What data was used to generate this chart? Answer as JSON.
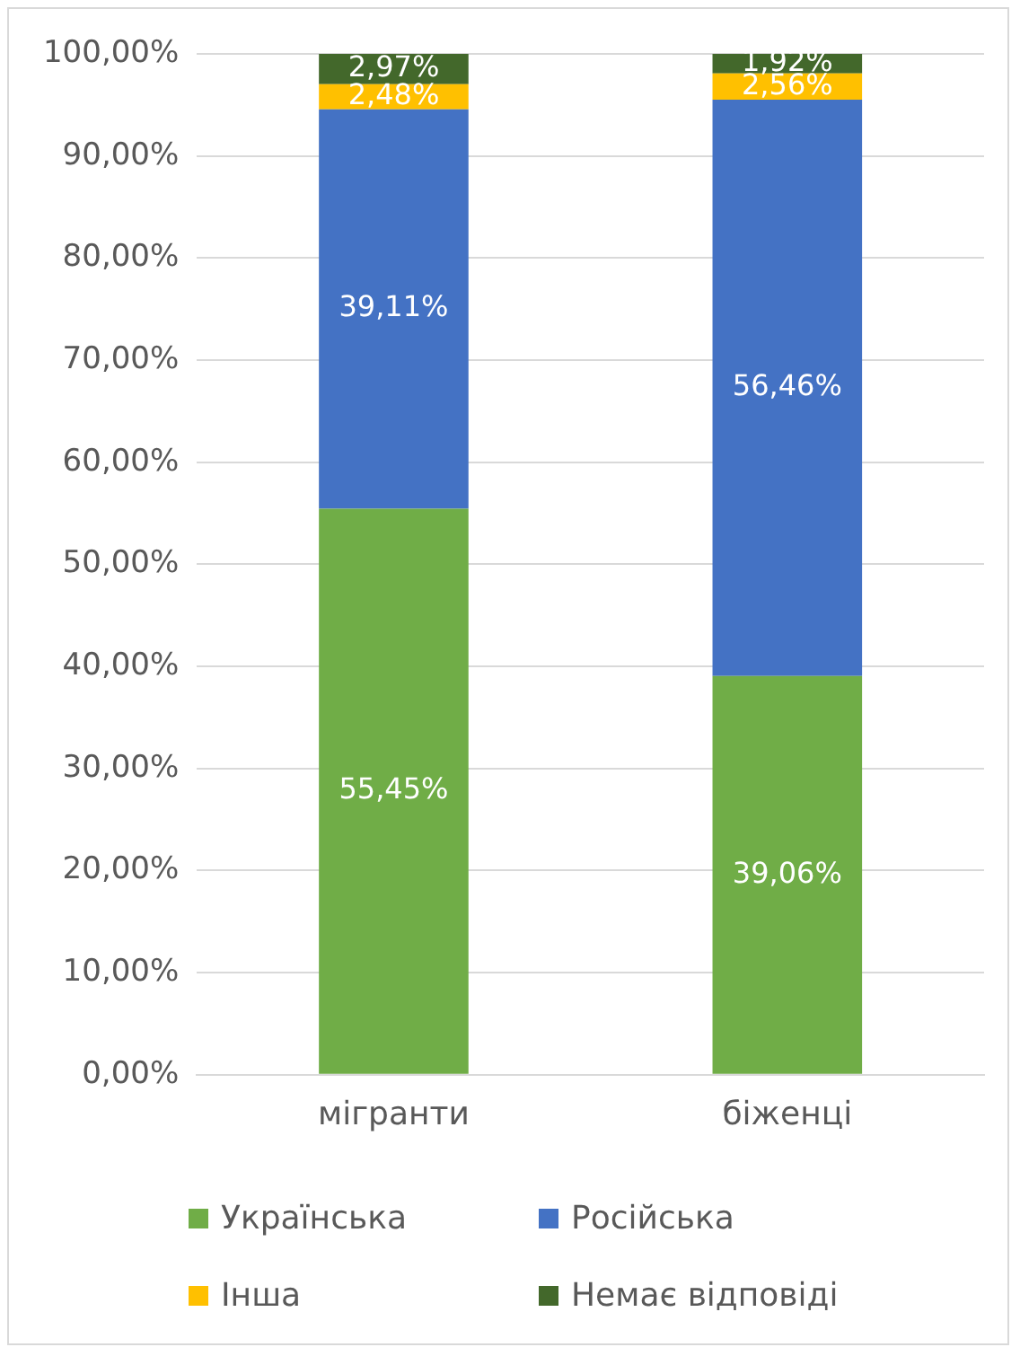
{
  "chart_data": {
    "type": "bar",
    "stacked": true,
    "categories": [
      "мігранти",
      "біженці"
    ],
    "series": [
      {
        "name": "Українська",
        "color": "#70ad47",
        "values": [
          55.45,
          39.06
        ],
        "value_labels": [
          "55,45%",
          "39,06%"
        ]
      },
      {
        "name": "Російська",
        "color": "#4472c4",
        "values": [
          39.11,
          56.46
        ],
        "value_labels": [
          "39,11%",
          "56,46%"
        ]
      },
      {
        "name": "Інша",
        "color": "#ffc000",
        "values": [
          2.48,
          2.56
        ],
        "value_labels": [
          "2,48%",
          "2,56%"
        ]
      },
      {
        "name": "Немає відповіді",
        "color": "#43682b",
        "values": [
          2.97,
          1.92
        ],
        "value_labels": [
          "2,97%",
          "1,92%"
        ]
      }
    ],
    "ylim": [
      0,
      100
    ],
    "yticks": [
      {
        "value": 0,
        "label": "0,00%"
      },
      {
        "value": 10,
        "label": "10,00%"
      },
      {
        "value": 20,
        "label": "20,00%"
      },
      {
        "value": 30,
        "label": "30,00%"
      },
      {
        "value": 40,
        "label": "40,00%"
      },
      {
        "value": 50,
        "label": "50,00%"
      },
      {
        "value": 60,
        "label": "60,00%"
      },
      {
        "value": 70,
        "label": "70,00%"
      },
      {
        "value": 80,
        "label": "80,00%"
      },
      {
        "value": 90,
        "label": "90,00%"
      },
      {
        "value": 100,
        "label": "100,00%"
      }
    ],
    "grid": "y",
    "legend": "bottom"
  }
}
